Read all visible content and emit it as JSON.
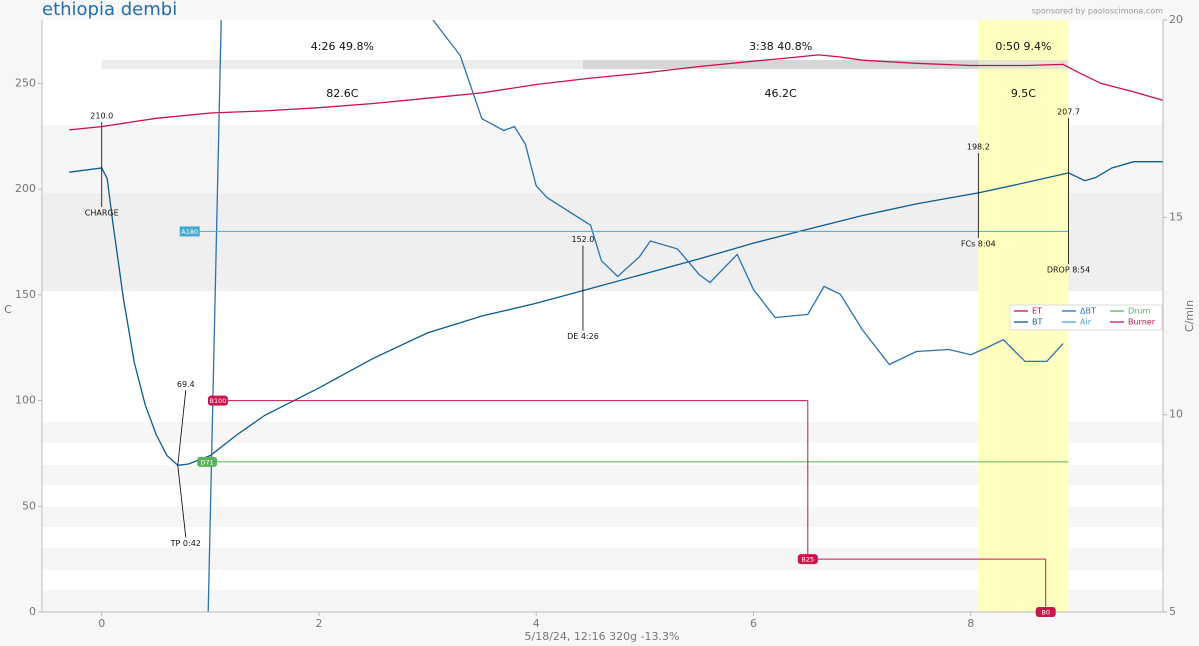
{
  "chart_data": {
    "type": "line",
    "title": "ethiopia dembi",
    "subtitle": "sponsored by paoloscimone.com",
    "xlabel": "5/18/24, 12:16   320g   -13.3%",
    "ylabel": "C",
    "y2label": "C/min",
    "xlim": [
      -0.55,
      9.77
    ],
    "ylim": [
      0,
      280
    ],
    "y2lim": [
      5,
      20
    ],
    "xticks": [
      0,
      2,
      4,
      6,
      8
    ],
    "yticks": [
      0,
      50,
      100,
      150,
      200,
      250
    ],
    "y2ticks": [
      5,
      10,
      15,
      20
    ],
    "grid": false,
    "legend": "right",
    "series": [
      {
        "name": "ET",
        "color": "#cc0f50",
        "style": "line",
        "x": [
          -0.3,
          0,
          0.5,
          1,
          1.5,
          2,
          2.5,
          3,
          3.5,
          4,
          4.5,
          5,
          5.5,
          6,
          6.3,
          6.6,
          6.8,
          7,
          7.5,
          8,
          8.5,
          8.85,
          9,
          9.2,
          9.5,
          9.77
        ],
        "values": [
          228,
          229.6,
          233.5,
          236,
          237,
          238.5,
          240.5,
          243,
          245.5,
          249.5,
          252.5,
          255,
          258,
          260.5,
          262,
          263.5,
          262.5,
          261,
          259.5,
          258.5,
          258.5,
          259,
          255,
          250,
          246,
          242
        ]
      },
      {
        "name": "BT",
        "color": "#0a5c90",
        "style": "line",
        "x": [
          -0.3,
          0,
          0.05,
          0.1,
          0.2,
          0.3,
          0.4,
          0.5,
          0.6,
          0.7,
          0.8,
          1,
          1.25,
          1.5,
          2,
          2.5,
          3,
          3.5,
          4,
          4.43,
          5,
          5.5,
          6,
          6.5,
          7,
          7.5,
          8.07,
          8.5,
          8.9,
          9.05,
          9.15,
          9.3,
          9.5,
          9.77
        ],
        "values": [
          208,
          210,
          205,
          185,
          148,
          118,
          98,
          84,
          74,
          69.4,
          70,
          74,
          84,
          93,
          106,
          120,
          132,
          140,
          146,
          152,
          160,
          167,
          174.5,
          181,
          187.5,
          193,
          198.2,
          203,
          207.7,
          204,
          205.5,
          210,
          213,
          213
        ]
      },
      {
        "name": "ΔBT",
        "color": "#2b72b0",
        "style": "line",
        "axis": "y2",
        "x": [
          0.98,
          1.1,
          2.0,
          3.05,
          3.3,
          3.5,
          3.7,
          3.8,
          3.9,
          4.0,
          4.1,
          4.3,
          4.5,
          4.6,
          4.75,
          4.95,
          5.05,
          5.3,
          5.5,
          5.6,
          5.85,
          6.0,
          6.2,
          6.5,
          6.65,
          6.8,
          7.0,
          7.25,
          7.5,
          7.8,
          8.0,
          8.15,
          8.3,
          8.5,
          8.7,
          8.85
        ],
        "values": [
          5.0,
          20.0,
          null,
          20.0,
          19.1,
          17.5,
          17.2,
          17.3,
          16.85,
          15.8,
          15.5,
          15.15,
          14.8,
          13.9,
          13.5,
          14.0,
          14.4,
          14.2,
          13.55,
          13.35,
          14.06,
          13.17,
          12.46,
          12.54,
          13.25,
          13.05,
          12.16,
          11.27,
          11.6,
          11.65,
          11.52,
          11.7,
          11.9,
          11.35,
          11.35,
          11.8
        ]
      },
      {
        "name": "Air",
        "color": "#46a9d1",
        "style": "step",
        "x": [
          0.81
        ],
        "values": [
          180
        ],
        "value_labels": [
          "A180"
        ],
        "x_end": 8.9
      },
      {
        "name": "Drum",
        "color": "#59b35a",
        "style": "step",
        "x": [
          0.97
        ],
        "values": [
          71
        ],
        "value_labels": [
          "D71"
        ],
        "x_end": 8.9
      },
      {
        "name": "Burner",
        "color": "#c8174a",
        "style": "step",
        "x": [
          1.07,
          6.5,
          8.69
        ],
        "values": [
          100,
          25,
          0
        ],
        "value_labels": [
          "B100",
          "B25",
          "B0"
        ],
        "x_end": 8.69
      }
    ],
    "events": [
      {
        "x": 0,
        "y": 210,
        "y_label": "210.0",
        "label": "CHARGE"
      },
      {
        "x": 0.7,
        "y": 69.4,
        "y_label": "69.4",
        "label": "TP 0:42"
      },
      {
        "x": 4.43,
        "y": 152,
        "y_label": "152.0",
        "label": "DE 4:26"
      },
      {
        "x": 8.07,
        "y": 198.2,
        "y_label": "198.2",
        "label": "FCs 8:04"
      },
      {
        "x": 8.9,
        "y": 207.7,
        "y_label": "207.7",
        "label": "DROP 8:54"
      }
    ],
    "phases": [
      {
        "text": "4:26  49.8%",
        "delta": "82.6C"
      },
      {
        "text": "3:38  40.8%",
        "delta": "46.2C"
      },
      {
        "text": "0:50  9.4%",
        "delta": "9.5C"
      }
    ]
  }
}
